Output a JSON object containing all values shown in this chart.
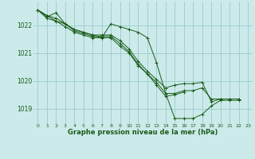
{
  "background_color": "#cceaea",
  "grid_color": "#99cccc",
  "line_color": "#1a5c1a",
  "marker_color": "#1a5c1a",
  "title": "Graphe pression niveau de la mer (hPa)",
  "xlim": [
    -0.5,
    23.5
  ],
  "ylim": [
    1018.45,
    1022.85
  ],
  "yticks": [
    1019,
    1020,
    1021,
    1022
  ],
  "xticks": [
    0,
    1,
    2,
    3,
    4,
    5,
    6,
    7,
    8,
    9,
    10,
    11,
    12,
    13,
    14,
    15,
    16,
    17,
    18,
    19,
    20,
    21,
    22,
    23
  ],
  "series": [
    [
      1022.55,
      1022.3,
      1022.45,
      1022.05,
      1021.85,
      1021.75,
      1021.65,
      1021.55,
      1022.05,
      1021.95,
      1021.85,
      1021.75,
      1021.55,
      1020.65,
      1019.55,
      1018.65,
      1018.65,
      1018.65,
      1018.8,
      1019.1,
      1019.3,
      1019.3,
      1019.3,
      null
    ],
    [
      1022.55,
      1022.25,
      1022.15,
      1022.05,
      1021.8,
      1021.7,
      1021.6,
      1021.6,
      1021.6,
      1021.35,
      1021.05,
      1020.6,
      1020.25,
      1019.85,
      1019.45,
      1019.5,
      1019.6,
      null,
      null,
      null,
      null,
      null,
      null,
      null
    ],
    [
      1022.55,
      1022.35,
      1022.25,
      1022.05,
      1021.85,
      1021.75,
      1021.65,
      1021.65,
      1021.65,
      1021.45,
      1021.15,
      1020.7,
      1020.35,
      1020.05,
      1019.75,
      1019.85,
      1019.9,
      1019.9,
      1019.95,
      1019.25,
      1019.35,
      1019.35,
      1019.35,
      null
    ],
    [
      1022.55,
      1022.35,
      1022.15,
      1021.95,
      1021.75,
      1021.65,
      1021.55,
      1021.55,
      1021.55,
      1021.25,
      1021.0,
      1020.55,
      1020.25,
      1019.95,
      1019.55,
      1019.55,
      1019.65,
      1019.65,
      1019.75,
      1019.35,
      1019.35,
      1019.35,
      1019.35,
      null
    ]
  ]
}
